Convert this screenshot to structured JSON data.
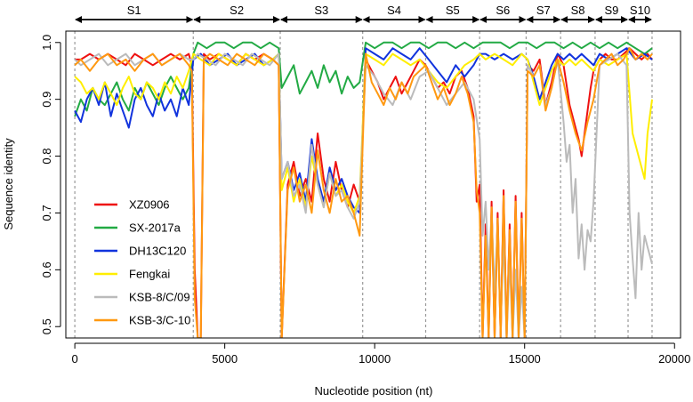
{
  "chart_data": {
    "type": "line",
    "xlabel": "Nucleotide position (nt)",
    "ylabel": "Sequence identity",
    "xlim": [
      -300,
      20200
    ],
    "ylim": [
      0.48,
      1.02
    ],
    "x_ticks": [
      0,
      5000,
      10000,
      15000,
      20000
    ],
    "y_ticks": [
      0.5,
      0.6,
      0.7,
      0.8,
      0.9,
      1.0
    ],
    "y_tick_labels": [
      "0.5",
      "0.6",
      "0.7",
      "0.8",
      "0.9",
      "1.0"
    ],
    "legend_position": "bottom-left",
    "segments": [
      {
        "label": "S1",
        "start": 0,
        "end": 3950
      },
      {
        "label": "S2",
        "start": 3950,
        "end": 6850
      },
      {
        "label": "S3",
        "start": 6850,
        "end": 9600
      },
      {
        "label": "S4",
        "start": 9600,
        "end": 11700
      },
      {
        "label": "S5",
        "start": 11700,
        "end": 13500
      },
      {
        "label": "S6",
        "start": 13500,
        "end": 15050
      },
      {
        "label": "S7",
        "start": 15050,
        "end": 16200
      },
      {
        "label": "S8",
        "start": 16200,
        "end": 17350
      },
      {
        "label": "S9",
        "start": 17350,
        "end": 18450
      },
      {
        "label": "S10",
        "start": 18450,
        "end": 19250
      }
    ],
    "series": [
      {
        "name": "XZ0906",
        "color": "#ee1111",
        "x": [
          0,
          200,
          500,
          800,
          1100,
          1400,
          1700,
          2000,
          2300,
          2600,
          2900,
          3200,
          3500,
          3800,
          3900,
          4000,
          4100,
          4200,
          4300,
          4500,
          4800,
          5100,
          5400,
          5700,
          6000,
          6300,
          6600,
          6800,
          6900,
          7100,
          7300,
          7500,
          7700,
          7900,
          8100,
          8300,
          8500,
          8700,
          8900,
          9100,
          9300,
          9500,
          9700,
          9900,
          10100,
          10300,
          10500,
          10700,
          10900,
          11100,
          11300,
          11500,
          11700,
          11900,
          12100,
          12300,
          12500,
          12700,
          12900,
          13100,
          13300,
          13400,
          13500,
          13600,
          13700,
          13800,
          13900,
          14000,
          14100,
          14200,
          14300,
          14400,
          14500,
          14600,
          14700,
          14800,
          14900,
          15000,
          15100,
          15300,
          15500,
          15700,
          15900,
          16100,
          16300,
          16500,
          16700,
          16800,
          16900,
          17000,
          17100,
          17200,
          17300,
          17500,
          17700,
          17900,
          18100,
          18300,
          18500,
          18700,
          18900,
          19100,
          19250
        ],
        "y": [
          0.97,
          0.97,
          0.98,
          0.97,
          0.98,
          0.97,
          0.96,
          0.98,
          0.97,
          0.96,
          0.97,
          0.98,
          0.97,
          0.98,
          0.96,
          0.6,
          0.48,
          0.48,
          0.98,
          0.97,
          0.98,
          0.97,
          0.96,
          0.98,
          0.97,
          0.98,
          0.97,
          0.96,
          0.48,
          0.75,
          0.79,
          0.73,
          0.76,
          0.72,
          0.84,
          0.76,
          0.72,
          0.79,
          0.74,
          0.71,
          0.75,
          0.72,
          0.97,
          0.95,
          0.93,
          0.9,
          0.92,
          0.94,
          0.91,
          0.93,
          0.95,
          0.97,
          0.96,
          0.94,
          0.92,
          0.93,
          0.91,
          0.94,
          0.95,
          0.92,
          0.87,
          0.72,
          0.75,
          0.48,
          0.68,
          0.48,
          0.72,
          0.48,
          0.7,
          0.48,
          0.74,
          0.48,
          0.68,
          0.48,
          0.73,
          0.48,
          0.7,
          0.48,
          0.96,
          0.95,
          0.97,
          0.89,
          0.93,
          0.98,
          0.96,
          0.89,
          0.85,
          0.83,
          0.8,
          0.84,
          0.88,
          0.92,
          0.95,
          0.97,
          0.98,
          0.97,
          0.97,
          0.98,
          0.99,
          0.98,
          0.97,
          0.98,
          0.97
        ]
      },
      {
        "name": "SX-2017a",
        "color": "#22aa44",
        "x": [
          0,
          200,
          400,
          600,
          800,
          1000,
          1200,
          1400,
          1600,
          1800,
          2000,
          2200,
          2400,
          2600,
          2800,
          3000,
          3200,
          3400,
          3600,
          3800,
          3950,
          4100,
          4400,
          4700,
          5000,
          5300,
          5600,
          5900,
          6200,
          6500,
          6800,
          6900,
          7100,
          7300,
          7500,
          7700,
          7900,
          8100,
          8300,
          8500,
          8700,
          8900,
          9100,
          9300,
          9500,
          9700,
          10000,
          10300,
          10600,
          10900,
          11200,
          11500,
          11800,
          12100,
          12400,
          12700,
          13000,
          13300,
          13600,
          13900,
          14200,
          14500,
          14800,
          15100,
          15400,
          15700,
          16000,
          16300,
          16600,
          16900,
          17200,
          17500,
          17800,
          18100,
          18400,
          18700,
          19000,
          19250
        ],
        "y": [
          0.87,
          0.9,
          0.88,
          0.92,
          0.9,
          0.89,
          0.91,
          0.93,
          0.9,
          0.88,
          0.92,
          0.9,
          0.93,
          0.91,
          0.89,
          0.92,
          0.94,
          0.92,
          0.9,
          0.92,
          0.98,
          1.0,
          0.99,
          1.0,
          1.0,
          0.99,
          1.0,
          1.0,
          0.99,
          1.0,
          0.99,
          0.92,
          0.94,
          0.96,
          0.91,
          0.93,
          0.95,
          0.92,
          0.96,
          0.93,
          0.95,
          0.91,
          0.94,
          0.92,
          0.93,
          1.0,
          0.99,
          1.0,
          1.0,
          0.99,
          1.0,
          1.0,
          0.99,
          1.0,
          1.0,
          0.99,
          1.0,
          0.99,
          1.0,
          1.0,
          1.0,
          0.99,
          1.0,
          1.0,
          0.99,
          1.0,
          1.0,
          0.99,
          1.0,
          0.99,
          1.0,
          0.99,
          1.0,
          0.99,
          1.0,
          0.99,
          0.98,
          0.99
        ]
      },
      {
        "name": "DH13C120",
        "color": "#1133dd",
        "x": [
          0,
          200,
          400,
          600,
          800,
          1000,
          1200,
          1400,
          1600,
          1800,
          2000,
          2200,
          2400,
          2600,
          2800,
          3000,
          3200,
          3400,
          3600,
          3800,
          3950,
          4200,
          4500,
          4800,
          5100,
          5400,
          5700,
          6000,
          6300,
          6600,
          6800,
          6900,
          7100,
          7300,
          7500,
          7700,
          7900,
          8100,
          8300,
          8500,
          8700,
          8900,
          9100,
          9300,
          9500,
          9700,
          10000,
          10300,
          10600,
          10900,
          11200,
          11500,
          11800,
          12100,
          12400,
          12700,
          13000,
          13300,
          13500,
          13700,
          14000,
          14300,
          14600,
          14900,
          15100,
          15300,
          15500,
          15700,
          15900,
          16100,
          16300,
          16500,
          16700,
          16900,
          17100,
          17300,
          17500,
          17800,
          18100,
          18400,
          18700,
          19000,
          19250
        ],
        "y": [
          0.88,
          0.86,
          0.9,
          0.92,
          0.89,
          0.93,
          0.87,
          0.91,
          0.88,
          0.85,
          0.9,
          0.92,
          0.89,
          0.87,
          0.91,
          0.88,
          0.9,
          0.87,
          0.92,
          0.89,
          0.97,
          0.98,
          0.96,
          0.97,
          0.98,
          0.96,
          0.97,
          0.98,
          0.96,
          0.97,
          0.98,
          0.76,
          0.79,
          0.74,
          0.77,
          0.72,
          0.83,
          0.76,
          0.72,
          0.78,
          0.74,
          0.76,
          0.73,
          0.71,
          0.7,
          0.99,
          0.98,
          0.97,
          0.99,
          0.98,
          0.97,
          0.99,
          0.97,
          0.95,
          0.93,
          0.96,
          0.94,
          0.96,
          0.98,
          0.98,
          0.97,
          0.98,
          0.97,
          0.98,
          0.97,
          0.94,
          0.9,
          0.93,
          0.96,
          0.98,
          0.97,
          0.98,
          0.97,
          0.98,
          0.97,
          0.96,
          0.98,
          0.97,
          0.98,
          0.99,
          0.97,
          0.98,
          0.97
        ]
      },
      {
        "name": "Fengkai",
        "color": "#ffee00",
        "x": [
          0,
          200,
          400,
          600,
          800,
          1000,
          1200,
          1400,
          1600,
          1800,
          2000,
          2200,
          2400,
          2600,
          2800,
          3000,
          3200,
          3400,
          3600,
          3800,
          3950,
          4200,
          4500,
          4800,
          5100,
          5400,
          5700,
          6000,
          6300,
          6600,
          6800,
          6900,
          7100,
          7300,
          7500,
          7700,
          7900,
          8100,
          8300,
          8500,
          8700,
          8900,
          9100,
          9300,
          9500,
          9700,
          10000,
          10300,
          10600,
          10900,
          11200,
          11500,
          11800,
          12100,
          12400,
          12700,
          13000,
          13300,
          13500,
          13700,
          14000,
          14300,
          14600,
          14900,
          15100,
          15300,
          15500,
          15700,
          15900,
          16100,
          16300,
          16500,
          16700,
          16900,
          17100,
          17300,
          17500,
          17800,
          18100,
          18400,
          18600,
          18800,
          19000,
          19100,
          19250
        ],
        "y": [
          0.94,
          0.93,
          0.91,
          0.92,
          0.9,
          0.93,
          0.91,
          0.89,
          0.92,
          0.94,
          0.91,
          0.9,
          0.93,
          0.92,
          0.9,
          0.93,
          0.91,
          0.94,
          0.92,
          0.95,
          0.98,
          0.97,
          0.96,
          0.98,
          0.97,
          0.96,
          0.98,
          0.97,
          0.96,
          0.97,
          0.98,
          0.74,
          0.78,
          0.72,
          0.76,
          0.71,
          0.8,
          0.75,
          0.71,
          0.77,
          0.73,
          0.75,
          0.72,
          0.7,
          0.73,
          0.98,
          0.97,
          0.96,
          0.98,
          0.97,
          0.96,
          0.97,
          0.95,
          0.93,
          0.92,
          0.94,
          0.96,
          0.97,
          0.98,
          0.97,
          0.98,
          0.97,
          0.96,
          0.98,
          0.97,
          0.93,
          0.89,
          0.92,
          0.95,
          0.97,
          0.96,
          0.97,
          0.96,
          0.97,
          0.96,
          0.95,
          0.97,
          0.96,
          0.97,
          0.98,
          0.84,
          0.8,
          0.76,
          0.84,
          0.9
        ]
      },
      {
        "name": "KSB-8/C/09",
        "color": "#bbbbbb",
        "x": [
          0,
          200,
          500,
          800,
          1100,
          1400,
          1700,
          2000,
          2300,
          2600,
          2900,
          3200,
          3500,
          3800,
          3950,
          4100,
          4400,
          4700,
          5000,
          5300,
          5600,
          5900,
          6200,
          6500,
          6800,
          6900,
          7100,
          7300,
          7500,
          7700,
          7900,
          8100,
          8300,
          8500,
          8700,
          8900,
          9100,
          9300,
          9500,
          9700,
          10000,
          10300,
          10600,
          10900,
          11200,
          11500,
          11800,
          12100,
          12400,
          12700,
          13000,
          13300,
          13500,
          13600,
          13700,
          13800,
          13900,
          14000,
          14100,
          14200,
          14300,
          14400,
          14500,
          14600,
          14700,
          14800,
          14900,
          15000,
          15100,
          15300,
          15500,
          15700,
          15900,
          16100,
          16300,
          16400,
          16500,
          16600,
          16700,
          16800,
          16900,
          17000,
          17100,
          17200,
          17300,
          17500,
          17800,
          18100,
          18400,
          18500,
          18600,
          18700,
          18800,
          18900,
          19000,
          19100,
          19250
        ],
        "y": [
          0.97,
          0.96,
          0.97,
          0.98,
          0.96,
          0.97,
          0.98,
          0.96,
          0.97,
          0.98,
          0.96,
          0.97,
          0.98,
          0.97,
          0.97,
          0.98,
          0.97,
          0.96,
          0.98,
          0.97,
          0.96,
          0.98,
          0.97,
          0.96,
          0.98,
          0.76,
          0.79,
          0.73,
          0.75,
          0.7,
          0.82,
          0.75,
          0.71,
          0.77,
          0.73,
          0.74,
          0.71,
          0.69,
          0.72,
          0.96,
          0.94,
          0.91,
          0.89,
          0.93,
          0.9,
          0.94,
          0.95,
          0.92,
          0.89,
          0.91,
          0.93,
          0.9,
          0.83,
          0.66,
          0.72,
          0.6,
          0.7,
          0.56,
          0.68,
          0.5,
          0.66,
          0.48,
          0.62,
          0.48,
          0.6,
          0.48,
          0.57,
          0.48,
          0.96,
          0.94,
          0.96,
          0.89,
          0.92,
          0.97,
          0.86,
          0.79,
          0.82,
          0.7,
          0.76,
          0.62,
          0.68,
          0.6,
          0.67,
          0.65,
          0.72,
          0.96,
          0.97,
          0.98,
          0.96,
          0.7,
          0.62,
          0.55,
          0.7,
          0.6,
          0.66,
          0.64,
          0.61
        ]
      },
      {
        "name": "KSB-3/C-10",
        "color": "#ff9911",
        "x": [
          0,
          200,
          500,
          800,
          1100,
          1400,
          1700,
          2000,
          2300,
          2600,
          2900,
          3200,
          3500,
          3800,
          3900,
          4000,
          4100,
          4200,
          4300,
          4500,
          4800,
          5100,
          5400,
          5700,
          6000,
          6300,
          6600,
          6800,
          6900,
          7100,
          7300,
          7500,
          7700,
          7900,
          8100,
          8300,
          8500,
          8700,
          8900,
          9100,
          9300,
          9500,
          9700,
          9900,
          10100,
          10300,
          10500,
          10700,
          10900,
          11100,
          11300,
          11500,
          11700,
          11900,
          12100,
          12300,
          12500,
          12700,
          12900,
          13100,
          13300,
          13400,
          13500,
          13600,
          13700,
          13800,
          13900,
          14000,
          14100,
          14200,
          14300,
          14400,
          14500,
          14600,
          14700,
          14800,
          14900,
          15000,
          15100,
          15300,
          15500,
          15700,
          15900,
          16100,
          16300,
          16500,
          16700,
          16900,
          17100,
          17300,
          17500,
          17700,
          17900,
          18100,
          18300,
          18500,
          18700,
          18900,
          19100,
          19250
        ],
        "y": [
          0.96,
          0.97,
          0.95,
          0.97,
          0.98,
          0.96,
          0.97,
          0.95,
          0.97,
          0.98,
          0.96,
          0.97,
          0.98,
          0.96,
          0.95,
          0.55,
          0.48,
          0.48,
          0.97,
          0.98,
          0.97,
          0.96,
          0.98,
          0.97,
          0.96,
          0.98,
          0.97,
          0.96,
          0.48,
          0.74,
          0.78,
          0.72,
          0.75,
          0.7,
          0.81,
          0.74,
          0.7,
          0.76,
          0.72,
          0.73,
          0.7,
          0.66,
          0.98,
          0.93,
          0.91,
          0.89,
          0.92,
          0.9,
          0.93,
          0.91,
          0.94,
          0.95,
          0.96,
          0.93,
          0.9,
          0.92,
          0.89,
          0.91,
          0.94,
          0.91,
          0.86,
          0.74,
          0.7,
          0.48,
          0.66,
          0.48,
          0.71,
          0.48,
          0.69,
          0.48,
          0.73,
          0.48,
          0.67,
          0.48,
          0.72,
          0.48,
          0.69,
          0.48,
          0.95,
          0.94,
          0.96,
          0.88,
          0.92,
          0.97,
          0.93,
          0.88,
          0.84,
          0.81,
          0.86,
          0.9,
          0.96,
          0.97,
          0.98,
          0.96,
          0.97,
          0.99,
          0.97,
          0.98,
          0.97,
          0.98
        ]
      }
    ]
  }
}
